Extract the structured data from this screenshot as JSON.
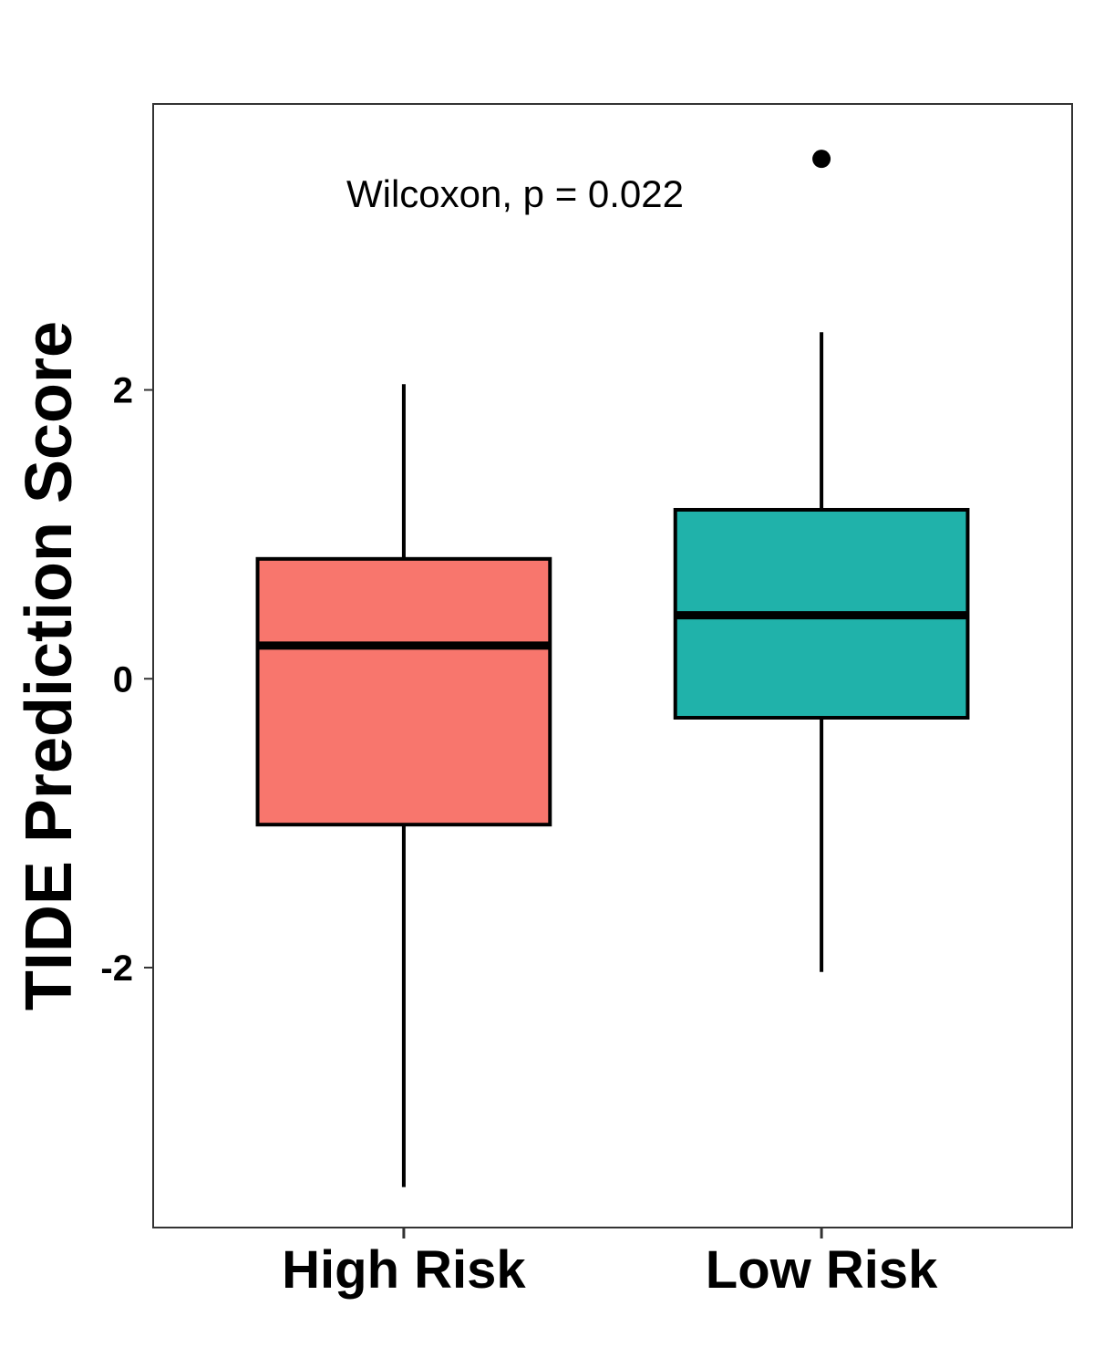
{
  "chart_data": {
    "type": "box",
    "title": "",
    "xlabel": "",
    "ylabel": "TIDE Prediction Score",
    "annotation": "Wilcoxon, p = 0.022",
    "ylim": [
      -3.8,
      3.98
    ],
    "yticks": [
      -2,
      0,
      2
    ],
    "ytick_labels": [
      "-2",
      "0",
      "2"
    ],
    "categories": [
      "High Risk",
      "Low Risk"
    ],
    "grid": false,
    "legend": "none",
    "series": [
      {
        "category": "High Risk",
        "color": "#F8766D",
        "whisker_low": -3.52,
        "q1": -1.01,
        "median": 0.23,
        "q3": 0.83,
        "whisker_high": 2.04,
        "outliers": []
      },
      {
        "category": "Low Risk",
        "color": "#20B2AA",
        "whisker_low": -2.03,
        "q1": -0.27,
        "median": 0.44,
        "q3": 1.17,
        "whisker_high": 2.4,
        "outliers": [
          3.6
        ]
      }
    ]
  }
}
